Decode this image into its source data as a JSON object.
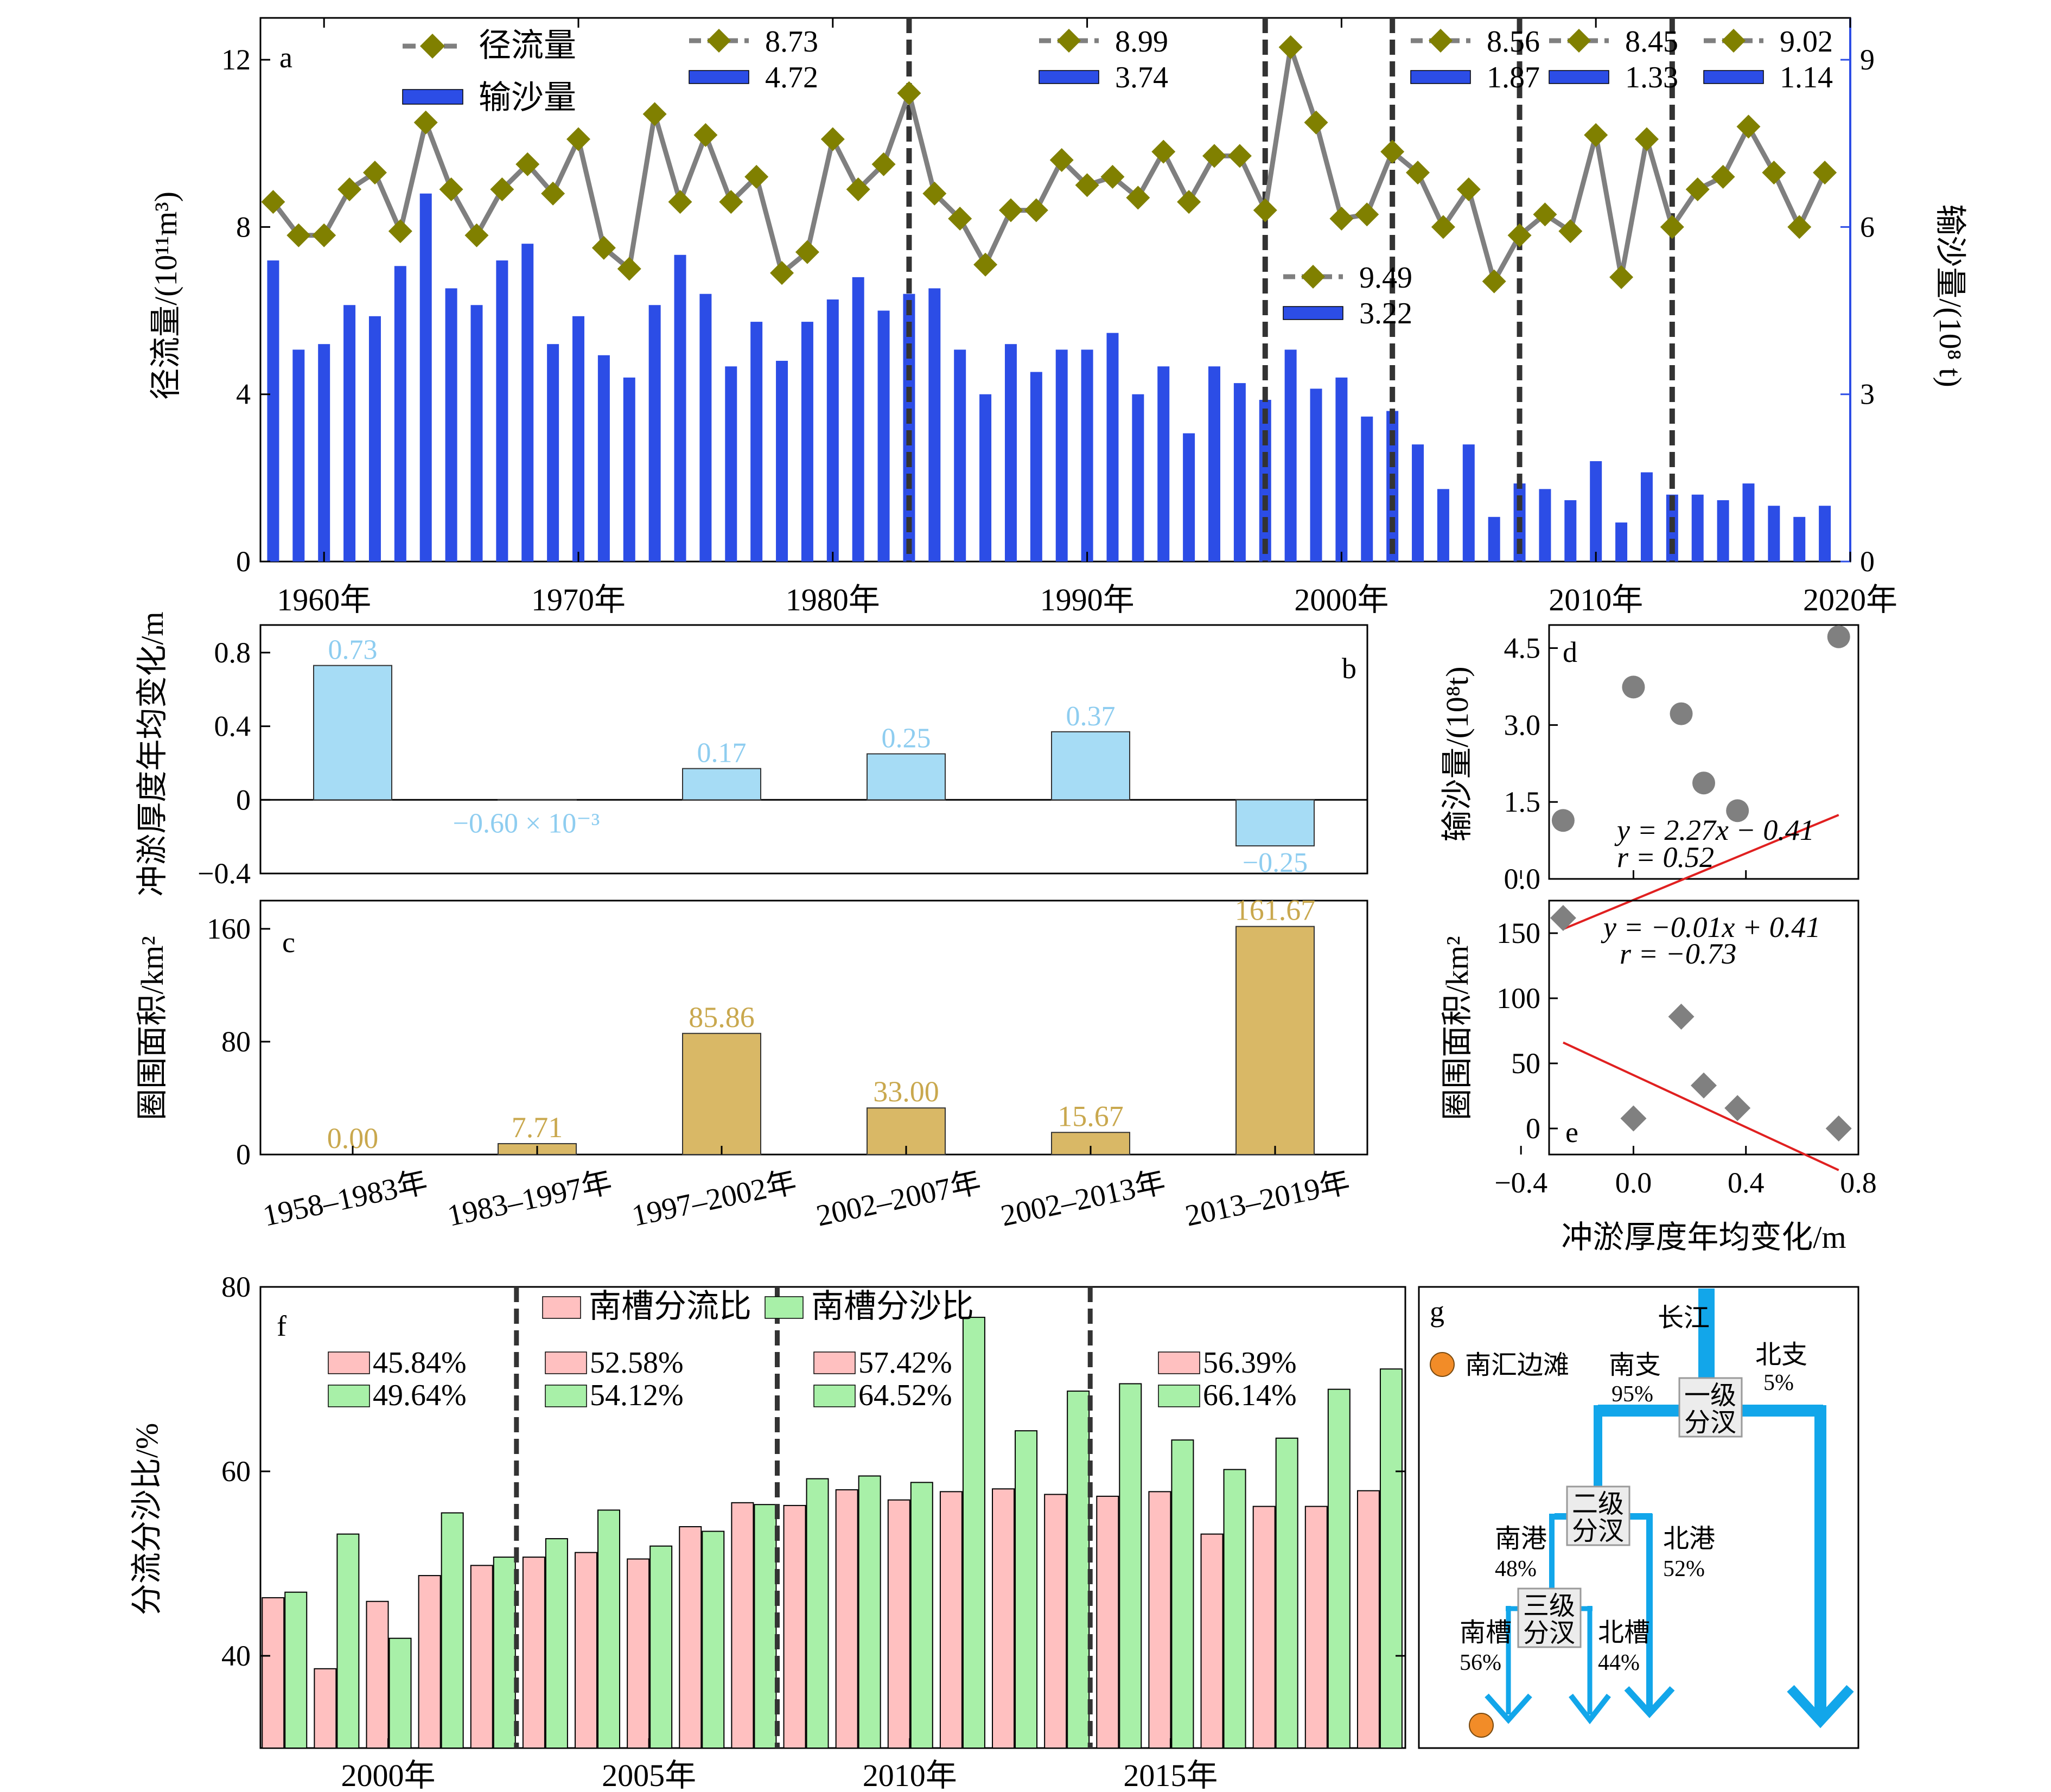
{
  "colors": {
    "runoff_line": "#7f7f7f",
    "runoff_marker": "#808000",
    "sediment_bar": "#2c4de6",
    "erosion_bar": "#a6dcf5",
    "erosion_label": "#8ecdf0",
    "area_bar": "#d9b866",
    "area_label": "#c9a84e",
    "fit_line": "#e02020",
    "scatter_marker": "#808080",
    "flow_bar": "#ffc0c0",
    "sediment_ratio_bar": "#a8f0a8",
    "arrow_blue": "#12a6ea",
    "dot_orange": "#f28c28"
  },
  "chart_data": [
    {
      "id": "a",
      "type": "bar+line",
      "panel_label": "a",
      "y_left_label": "径流量/(10¹¹m³)",
      "y_right_label": "输沙量/(10⁸ t)",
      "y_left_lim": [
        0,
        13
      ],
      "y_left_ticks": [
        "0",
        "4",
        "8",
        "12"
      ],
      "y_right_lim": [
        0,
        9.75
      ],
      "y_right_ticks": [
        "0",
        "3",
        "6",
        "9"
      ],
      "x_lim": [
        1957.5,
        2020
      ],
      "x_ticks": [
        "1960年",
        "1970年",
        "1980年",
        "1990年",
        "2000年",
        "2010年",
        "2020年"
      ],
      "legend": [
        {
          "label": "径流量",
          "shape": "line-diamond"
        },
        {
          "label": "输沙量",
          "shape": "bar"
        }
      ],
      "period_boxes": [
        {
          "runoff": "8.73",
          "sediment": "4.72"
        },
        {
          "runoff": "8.99",
          "sediment": "3.74"
        },
        {
          "runoff": "8.56",
          "sediment": "1.87"
        },
        {
          "runoff": "8.45",
          "sediment": "1.33"
        },
        {
          "runoff": "9.02",
          "sediment": "1.14"
        },
        {
          "runoff": "9.49",
          "sediment": "3.22"
        }
      ],
      "break_years": [
        1983,
        1997,
        2002,
        2007,
        2013
      ],
      "years": [
        1958,
        1959,
        1960,
        1961,
        1962,
        1963,
        1964,
        1965,
        1966,
        1967,
        1968,
        1969,
        1970,
        1971,
        1972,
        1973,
        1974,
        1975,
        1976,
        1977,
        1978,
        1979,
        1980,
        1981,
        1982,
        1983,
        1984,
        1985,
        1986,
        1987,
        1988,
        1989,
        1990,
        1991,
        1992,
        1993,
        1994,
        1995,
        1996,
        1997,
        1998,
        1999,
        2000,
        2001,
        2002,
        2003,
        2004,
        2005,
        2006,
        2007,
        2008,
        2009,
        2010,
        2011,
        2012,
        2013,
        2014,
        2015,
        2016,
        2017,
        2018,
        2019
      ],
      "series": [
        {
          "name": "径流量",
          "axis": "left",
          "values": [
            8.6,
            7.8,
            7.8,
            8.9,
            9.3,
            7.9,
            10.5,
            8.9,
            7.8,
            8.9,
            9.5,
            8.8,
            10.1,
            7.5,
            7.0,
            10.7,
            8.6,
            10.2,
            8.6,
            9.2,
            6.9,
            7.4,
            10.1,
            8.9,
            9.5,
            11.2,
            8.8,
            8.2,
            7.1,
            8.4,
            8.4,
            9.6,
            9.0,
            9.2,
            8.7,
            9.8,
            8.6,
            9.7,
            9.7,
            8.4,
            12.3,
            10.5,
            8.2,
            8.3,
            9.8,
            9.3,
            8.0,
            8.9,
            6.7,
            7.8,
            8.3,
            7.9,
            10.2,
            6.8,
            10.1,
            8.0,
            8.9,
            9.2,
            10.4,
            9.3,
            8.0,
            9.3
          ]
        },
        {
          "name": "输沙量",
          "axis": "right",
          "values": [
            5.4,
            3.8,
            3.9,
            4.6,
            4.4,
            5.3,
            6.6,
            4.9,
            4.6,
            5.4,
            5.7,
            3.9,
            4.4,
            3.7,
            3.3,
            4.6,
            5.5,
            4.8,
            3.5,
            4.3,
            3.6,
            4.3,
            4.7,
            5.1,
            4.5,
            4.8,
            4.9,
            3.8,
            3.0,
            3.9,
            3.4,
            3.8,
            3.8,
            4.1,
            3.0,
            3.5,
            2.3,
            3.5,
            3.2,
            2.9,
            3.8,
            3.1,
            3.3,
            2.6,
            2.7,
            2.1,
            1.3,
            2.1,
            0.8,
            1.4,
            1.3,
            1.1,
            1.8,
            0.7,
            1.6,
            1.2,
            1.2,
            1.1,
            1.4,
            1.0,
            0.8,
            1.0
          ]
        }
      ]
    },
    {
      "id": "b",
      "type": "bar",
      "panel_label": "b",
      "y_label": "冲淤厚度年均变化/m",
      "ylim": [
        -0.4,
        0.95
      ],
      "y_ticks": [
        "−0.4",
        "0",
        "0.4",
        "0.8"
      ],
      "categories": [
        "1958–1983年",
        "1983–1997年",
        "1997–2002年",
        "2002–2007年",
        "2002–2013年",
        "2013–2019年"
      ],
      "values": [
        0.73,
        -0.0006,
        0.17,
        0.25,
        0.37,
        -0.25
      ],
      "value_labels": [
        "0.73",
        "−0.60 × 10⁻³",
        "0.17",
        "0.25",
        "0.37",
        "−0.25"
      ]
    },
    {
      "id": "c",
      "type": "bar",
      "panel_label": "c",
      "y_label": "圈围面积/km²",
      "ylim": [
        0,
        180
      ],
      "y_ticks": [
        "0",
        "80",
        "160"
      ],
      "categories": [
        "1958–1983年",
        "1983–1997年",
        "1997–2002年",
        "2002–2007年",
        "2002–2013年",
        "2013–2019年"
      ],
      "values": [
        0.0,
        7.71,
        85.86,
        33.0,
        15.67,
        161.67
      ],
      "value_labels": [
        "0.00",
        "7.71",
        "85.86",
        "33.00",
        "15.67",
        "161.67"
      ]
    },
    {
      "id": "d",
      "type": "scatter",
      "panel_label": "d",
      "y_label": "输沙量/(10⁸t)",
      "xlim": [
        -0.3,
        0.8
      ],
      "ylim": [
        0,
        4.95
      ],
      "y_ticks": [
        "0.0",
        "1.5",
        "3.0",
        "4.5"
      ],
      "points": [
        [
          0.73,
          4.72
        ],
        [
          0.0,
          3.74
        ],
        [
          0.17,
          3.22
        ],
        [
          0.25,
          1.87
        ],
        [
          0.37,
          1.33
        ],
        [
          -0.25,
          1.14
        ]
      ],
      "fit": {
        "slope": 2.27,
        "intercept": -0.41
      },
      "equation": "y = 2.27x − 0.41",
      "r_text": "r = 0.52"
    },
    {
      "id": "e",
      "type": "scatter",
      "panel_label": "e",
      "y_label": "圈围面积/km²",
      "x_label": "冲淤厚度年均变化/m",
      "xlim": [
        -0.3,
        0.8
      ],
      "ylim": [
        -20,
        175
      ],
      "x_ticks": [
        "−0.4",
        "0.0",
        "0.4",
        "0.8"
      ],
      "y_ticks": [
        "0",
        "50",
        "100",
        "150"
      ],
      "points": [
        [
          -0.25,
          161.67
        ],
        [
          0.0,
          7.71
        ],
        [
          0.17,
          85.86
        ],
        [
          0.25,
          33.0
        ],
        [
          0.37,
          15.67
        ],
        [
          0.73,
          0.0
        ]
      ],
      "fit_equation_x": {
        "slope": -0.01,
        "intercept": 0.41
      },
      "equation": "y = −0.01x + 0.41",
      "r_text": "r = −0.73"
    },
    {
      "id": "f",
      "type": "bar",
      "panel_label": "f",
      "y_label": "分流分沙比/%",
      "ylim": [
        30,
        80
      ],
      "y_ticks": [
        "40",
        "60",
        "80"
      ],
      "x_ticks": [
        "2000年",
        "2005年",
        "2010年",
        "2015年"
      ],
      "x_tick_years": [
        2000,
        2005,
        2010,
        2015
      ],
      "break_years": [
        2002,
        2007,
        2013
      ],
      "years": [
        1998,
        1999,
        2000,
        2001,
        2002,
        2003,
        2004,
        2005,
        2006,
        2007,
        2008,
        2009,
        2010,
        2011,
        2012,
        2013,
        2014,
        2015,
        2016,
        2017,
        2018,
        2019
      ],
      "series": [
        {
          "name": "南槽分流比",
          "values": [
            46.3,
            38.6,
            45.9,
            48.7,
            49.8,
            50.7,
            51.2,
            50.5,
            54.0,
            56.6,
            56.3,
            58.0,
            56.9,
            57.8,
            58.1,
            57.5,
            57.3,
            57.8,
            53.2,
            56.2,
            56.2,
            57.9
          ]
        },
        {
          "name": "南槽分沙比",
          "values": [
            46.9,
            53.2,
            41.9,
            55.5,
            50.7,
            52.7,
            55.8,
            51.9,
            53.5,
            56.4,
            59.2,
            59.5,
            58.8,
            76.7,
            64.4,
            68.7,
            69.5,
            63.4,
            60.2,
            63.6,
            68.9,
            71.1
          ]
        }
      ],
      "period_boxes": [
        {
          "flow": "45.84%",
          "sediment": "49.64%"
        },
        {
          "flow": "52.58%",
          "sediment": "54.12%"
        },
        {
          "flow": "57.42%",
          "sediment": "64.52%"
        },
        {
          "flow": "56.39%",
          "sediment": "66.14%"
        }
      ]
    }
  ],
  "schematic": {
    "panel_label": "g",
    "changjiang": "长江",
    "nanhui": "南汇边滩",
    "south_branch": "南支",
    "south_branch_pct": "95%",
    "north_branch": "北支",
    "north_branch_pct": "5%",
    "level1_a": "一级",
    "level1_b": "分汊",
    "level2_a": "二级",
    "level2_b": "分汊",
    "level3_a": "三级",
    "level3_b": "分汊",
    "south_port": "南港",
    "south_port_pct": "48%",
    "north_port": "北港",
    "north_port_pct": "52%",
    "south_channel": "南槽",
    "south_channel_pct": "56%",
    "north_channel": "北槽",
    "north_channel_pct": "44%"
  }
}
